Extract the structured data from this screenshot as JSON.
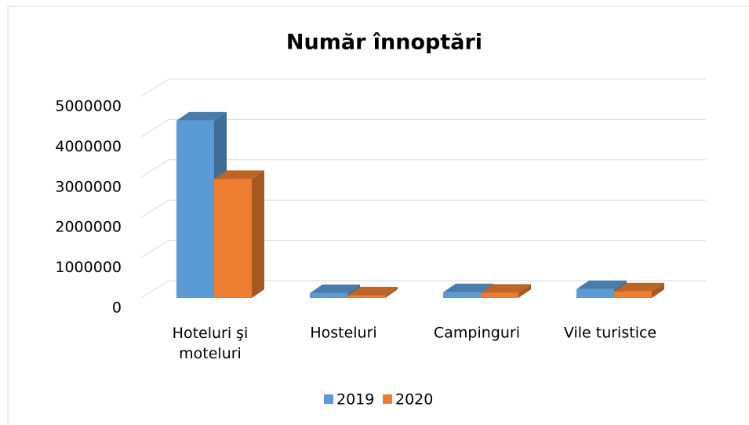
{
  "chart_data": {
    "type": "bar3d",
    "title": "Număr înnoptări",
    "categories": [
      "Hoteluri şi moteluri",
      "Hosteluri",
      "Campinguri",
      "Vile turistice"
    ],
    "series": [
      {
        "name": "2019",
        "color": "#5b9bd5",
        "values": [
          4400000,
          120000,
          140000,
          220000
        ]
      },
      {
        "name": "2020",
        "color": "#ed7d31",
        "values": [
          2950000,
          60000,
          130000,
          160000
        ]
      }
    ],
    "ylim": [
      0,
      5000000
    ],
    "yticks": [
      0,
      1000000,
      2000000,
      3000000,
      4000000,
      5000000
    ],
    "grid": true,
    "legend": "bottom"
  }
}
